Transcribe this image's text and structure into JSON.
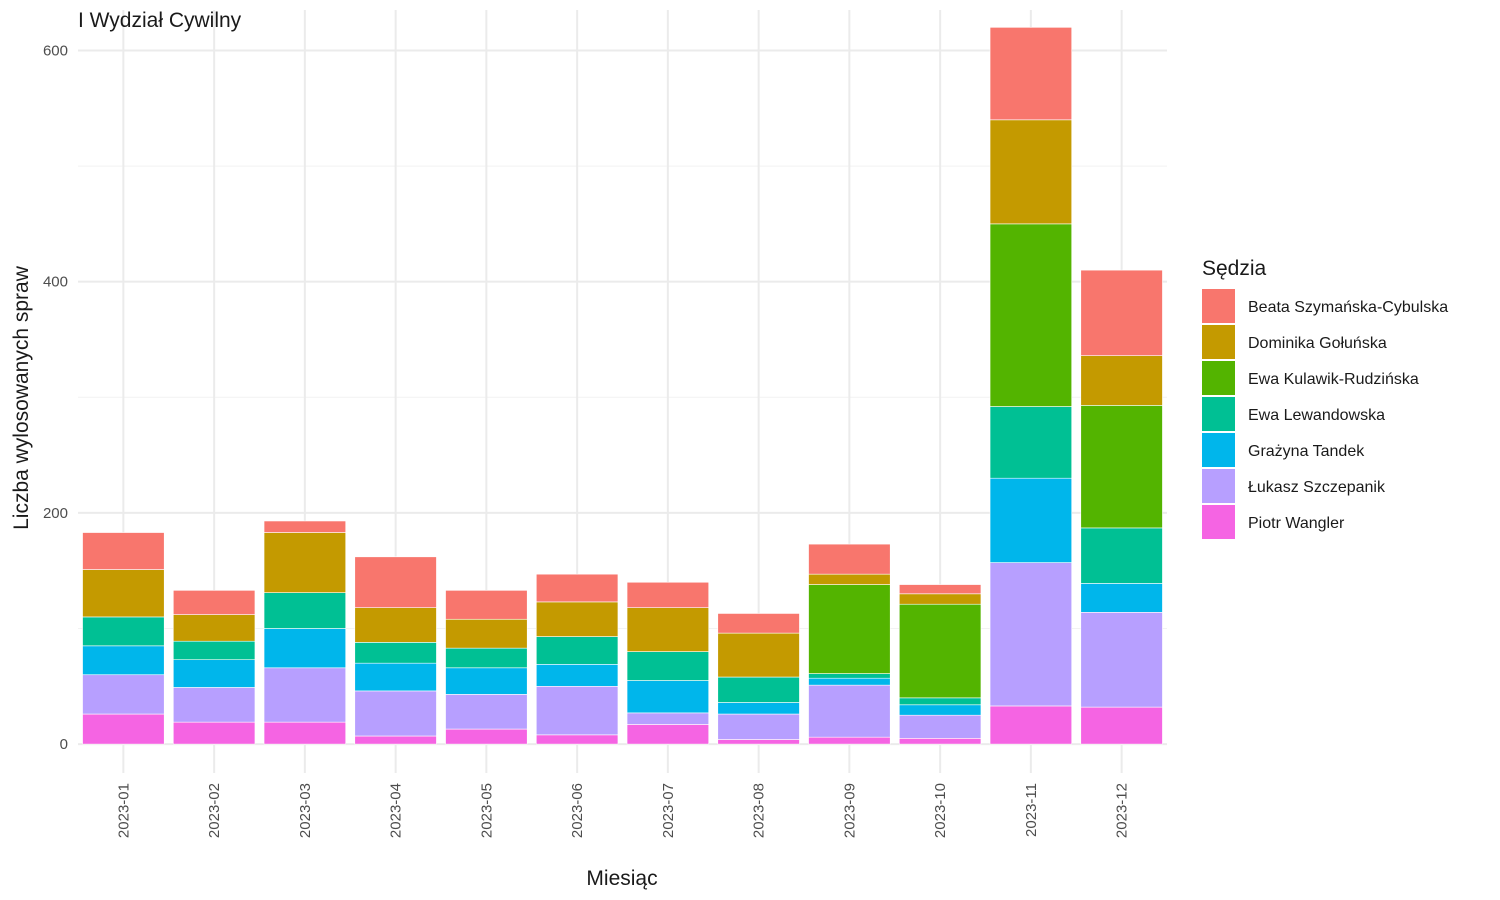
{
  "chart_data": {
    "type": "bar",
    "stacked": true,
    "title": "I Wydział Cywilny",
    "xlabel": "Miesiąc",
    "ylabel": "Liczba wylosowanych spraw",
    "ylim": [
      -25,
      635
    ],
    "y_ticks": [
      0,
      200,
      400,
      600
    ],
    "grid": true,
    "legend_title": "Sędzia",
    "legend_position": "right",
    "categories": [
      "2023-01",
      "2023-02",
      "2023-03",
      "2023-04",
      "2023-05",
      "2023-06",
      "2023-07",
      "2023-08",
      "2023-09",
      "2023-10",
      "2023-11",
      "2023-12"
    ],
    "series": [
      {
        "name": "Piotr Wangler",
        "color": "#F564E3",
        "values": [
          26,
          19,
          19,
          7,
          13,
          8,
          17,
          4,
          6,
          5,
          33,
          32
        ]
      },
      {
        "name": "Łukasz Szczepanik",
        "color": "#B79FFF",
        "values": [
          34,
          30,
          47,
          39,
          30,
          42,
          10,
          22,
          45,
          20,
          124,
          82
        ]
      },
      {
        "name": "Grażyna Tandek",
        "color": "#00B6EB",
        "values": [
          25,
          24,
          34,
          24,
          23,
          19,
          28,
          10,
          6,
          9,
          73,
          25
        ]
      },
      {
        "name": "Ewa Lewandowska",
        "color": "#00C094",
        "values": [
          25,
          16,
          31,
          18,
          17,
          24,
          25,
          22,
          4,
          6,
          62,
          48
        ]
      },
      {
        "name": "Ewa Kulawik-Rudzińska",
        "color": "#53B400",
        "values": [
          0,
          0,
          0,
          0,
          0,
          0,
          0,
          0,
          77,
          81,
          158,
          106
        ]
      },
      {
        "name": "Dominika Gołuńska",
        "color": "#C49A00",
        "values": [
          41,
          23,
          52,
          30,
          25,
          30,
          38,
          38,
          9,
          9,
          90,
          43
        ]
      },
      {
        "name": "Beata Szymańska-Cybulska",
        "color": "#F8766D",
        "values": [
          32,
          21,
          10,
          44,
          25,
          24,
          22,
          17,
          26,
          8,
          80,
          74
        ]
      }
    ],
    "legend_order": [
      "Beata Szymańska-Cybulska",
      "Dominika Gołuńska",
      "Ewa Kulawik-Rudzińska",
      "Ewa Lewandowska",
      "Grażyna Tandek",
      "Łukasz Szczepanik",
      "Piotr Wangler"
    ]
  }
}
